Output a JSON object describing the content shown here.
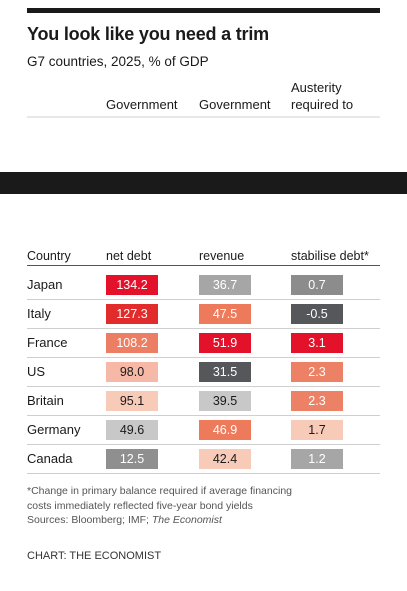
{
  "title": "You look like you need a trim",
  "subtitle": "G7 countries, 2025, % of GDP",
  "top_headers": {
    "col1": "Government",
    "col2": "Government",
    "col3_line1": "Austerity",
    "col3_line2": "required to"
  },
  "chart_data": {
    "type": "table",
    "columns": [
      "Country",
      "net debt",
      "revenue",
      "stabilise debt*"
    ],
    "rows": [
      {
        "country": "Japan",
        "values": [
          "134.2",
          "36.7",
          "0.7"
        ],
        "colors": [
          "#e3122a",
          "#a6a6a6",
          "#8c8c8c"
        ]
      },
      {
        "country": "Italy",
        "values": [
          "127.3",
          "47.5",
          "-0.5"
        ],
        "colors": [
          "#e22b2b",
          "#ee7a5c",
          "#55575b"
        ]
      },
      {
        "country": "France",
        "values": [
          "108.2",
          "51.9",
          "3.1"
        ],
        "colors": [
          "#eb7e63",
          "#e3122a",
          "#e3122a"
        ]
      },
      {
        "country": "US",
        "values": [
          "98.0",
          "31.5",
          "2.3"
        ],
        "colors": [
          "#f6b9a7",
          "#55575b",
          "#ec8166"
        ]
      },
      {
        "country": "Britain",
        "values": [
          "95.1",
          "39.5",
          "2.3"
        ],
        "colors": [
          "#f8cbb9",
          "#c8c8c8",
          "#ec8166"
        ]
      },
      {
        "country": "Germany",
        "values": [
          "49.6",
          "46.9",
          "1.7"
        ],
        "colors": [
          "#c8c8c8",
          "#ee7a5c",
          "#f8cbb9"
        ]
      },
      {
        "country": "Canada",
        "values": [
          "12.5",
          "42.4",
          "1.2"
        ],
        "colors": [
          "#8f8f8f",
          "#f8cbb9",
          "#a6a6a6"
        ]
      }
    ]
  },
  "footnote_line1": "*Change in primary balance required if average financing",
  "footnote_line2": "costs immediately reflected five-year bond yields",
  "sources_prefix": "Sources: Bloomberg; IMF; ",
  "sources_italic": "The Economist",
  "credit": "CHART: THE ECONOMIST"
}
